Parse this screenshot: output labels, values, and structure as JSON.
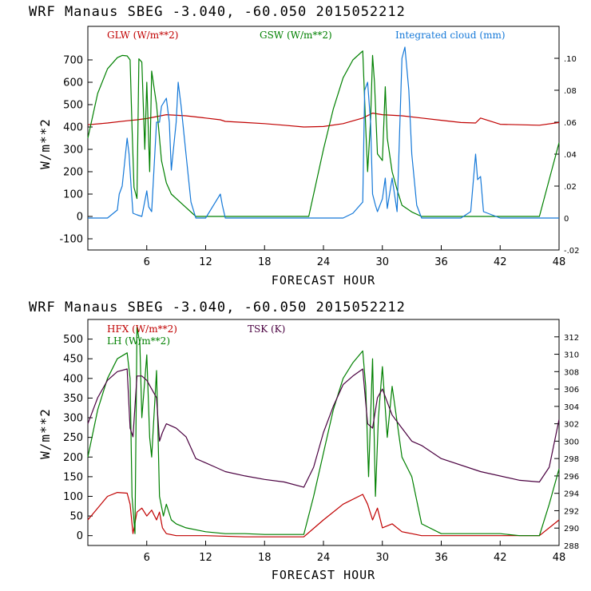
{
  "chart_data": [
    {
      "type": "line",
      "title": "WRF   Manaus SBEG   -3.040, -60.050  2015052212",
      "xlabel": "FORECAST HOUR",
      "ylabel": "W/m**2",
      "xlim": [
        0,
        48
      ],
      "ylim": [
        -150,
        850
      ],
      "y2lim": [
        -0.02,
        0.12
      ],
      "x_ticks": [
        "6",
        "12",
        "18",
        "24",
        "30",
        "36",
        "42",
        "48"
      ],
      "y_ticks": [
        "-100",
        "0",
        "100",
        "200",
        "300",
        "400",
        "500",
        "600",
        "700"
      ],
      "y2_ticks": [
        "-.02",
        "0",
        ".02",
        ".04",
        ".06",
        ".08",
        ".10"
      ],
      "series": [
        {
          "name": "GLW (W/m**2)",
          "color": "#c00000",
          "axis": "left",
          "x": [
            0,
            2,
            4,
            5,
            6,
            8,
            10,
            12,
            13.5,
            14,
            16,
            18,
            20,
            22,
            24,
            26,
            28,
            29,
            30,
            32,
            34,
            36,
            38,
            39.5,
            40,
            42,
            44,
            46,
            48
          ],
          "y": [
            410,
            418,
            428,
            432,
            438,
            455,
            450,
            440,
            432,
            425,
            420,
            415,
            408,
            400,
            402,
            415,
            440,
            462,
            455,
            450,
            440,
            430,
            420,
            418,
            440,
            412,
            410,
            408,
            420
          ]
        },
        {
          "name": "GSW (W/m**2)",
          "color": "#008000",
          "axis": "left",
          "x": [
            0,
            1,
            2,
            3,
            3.5,
            4,
            4.3,
            4.5,
            4.7,
            5,
            5.2,
            5.5,
            5.8,
            6,
            6.3,
            6.5,
            7,
            7.5,
            8,
            8.5,
            9,
            10,
            11,
            12,
            13,
            14,
            16,
            18,
            20,
            22,
            22.5,
            24,
            25,
            26,
            27,
            28,
            28.3,
            28.5,
            28.8,
            29,
            29.2,
            29.5,
            30,
            30.3,
            30.5,
            31,
            31.5,
            32,
            33,
            34,
            35,
            36,
            38,
            40,
            42,
            46,
            48
          ],
          "y": [
            350,
            550,
            660,
            710,
            720,
            718,
            700,
            400,
            130,
            80,
            705,
            690,
            300,
            600,
            200,
            650,
            500,
            250,
            150,
            100,
            80,
            40,
            0,
            0,
            0,
            0,
            0,
            0,
            0,
            0,
            0,
            300,
            480,
            620,
            700,
            740,
            400,
            200,
            430,
            720,
            600,
            280,
            250,
            580,
            350,
            200,
            120,
            50,
            20,
            0,
            0,
            0,
            0,
            0,
            0,
            0,
            330
          ]
        },
        {
          "name": "Integrated cloud (mm)",
          "color": "#1478d8",
          "axis": "right",
          "x": [
            0,
            2,
            3,
            3.2,
            3.5,
            4,
            4.2,
            4.4,
            4.6,
            5,
            5.5,
            6,
            6.2,
            6.5,
            7,
            7.3,
            7.5,
            8,
            8.3,
            8.5,
            9,
            9.2,
            9.5,
            10,
            10.5,
            11,
            12,
            13.5,
            13.7,
            14,
            16,
            18,
            20,
            22,
            26,
            27,
            28,
            28.2,
            28.5,
            28.8,
            29,
            29.3,
            29.5,
            30,
            30.3,
            30.5,
            31,
            31.5,
            32,
            32.3,
            32.7,
            33,
            33.5,
            34,
            36,
            38,
            39,
            39.5,
            39.7,
            40,
            40.3,
            42,
            44,
            46,
            48
          ],
          "y": [
            0,
            0,
            0.005,
            0.015,
            0.02,
            0.05,
            0.04,
            0.02,
            0.003,
            0.002,
            0.001,
            0.017,
            0.007,
            0.004,
            0.06,
            0.06,
            0.07,
            0.075,
            0.06,
            0.03,
            0.06,
            0.085,
            0.07,
            0.04,
            0.01,
            0,
            0,
            0.015,
            0.008,
            0,
            0,
            0,
            0,
            0,
            0,
            0.003,
            0.01,
            0.08,
            0.085,
            0.06,
            0.015,
            0.008,
            0.004,
            0.012,
            0.025,
            0.006,
            0.025,
            0.004,
            0.1,
            0.107,
            0.08,
            0.04,
            0.008,
            0,
            0,
            0,
            0.004,
            0.04,
            0.024,
            0.026,
            0.004,
            0,
            0,
            0,
            0
          ]
        }
      ]
    },
    {
      "type": "line",
      "title": "WRF   Manaus SBEG   -3.040, -60.050  2015052212",
      "xlabel": "FORECAST HOUR",
      "ylabel": "W/m**2",
      "xlim": [
        0,
        48
      ],
      "ylim": [
        -25,
        550
      ],
      "y2lim": [
        288,
        314
      ],
      "x_ticks": [
        "6",
        "12",
        "18",
        "24",
        "30",
        "36",
        "42",
        "48"
      ],
      "y_ticks": [
        "0",
        "50",
        "100",
        "150",
        "200",
        "250",
        "300",
        "350",
        "400",
        "450",
        "500"
      ],
      "y2_ticks": [
        "288",
        "290",
        "292",
        "294",
        "296",
        "298",
        "300",
        "302",
        "304",
        "306",
        "308",
        "310",
        "312"
      ],
      "series": [
        {
          "name": "HFX (W/m**2)",
          "color": "#c00000",
          "axis": "left",
          "x": [
            0,
            1,
            2,
            3,
            4,
            4.3,
            4.6,
            5,
            5.5,
            6,
            6.5,
            7,
            7.3,
            7.6,
            8,
            9,
            10,
            12,
            16,
            20,
            22,
            24,
            26,
            28,
            28.5,
            29,
            29.5,
            30,
            31,
            32,
            33,
            34,
            36,
            40,
            44,
            46,
            48
          ],
          "y": [
            40,
            70,
            100,
            110,
            108,
            80,
            5,
            60,
            70,
            50,
            65,
            40,
            60,
            20,
            5,
            0,
            0,
            0,
            -3,
            -3,
            -3,
            40,
            80,
            105,
            80,
            40,
            70,
            20,
            30,
            10,
            5,
            0,
            0,
            0,
            0,
            0,
            40
          ]
        },
        {
          "name": "LH  (W/m**2)",
          "color": "#008000",
          "axis": "left",
          "x": [
            0,
            1,
            2,
            3,
            4,
            4.3,
            4.5,
            4.8,
            5,
            5.3,
            5.5,
            6,
            6.3,
            6.5,
            7,
            7.3,
            7.7,
            8,
            8.5,
            9,
            10,
            12,
            14,
            16,
            18,
            20,
            22,
            23,
            24,
            25,
            26,
            27,
            28,
            28.3,
            28.6,
            29,
            29.3,
            29.6,
            30,
            30.5,
            31,
            32,
            33,
            34,
            36,
            38,
            40,
            42,
            44,
            46,
            47,
            48
          ],
          "y": [
            200,
            320,
            400,
            450,
            465,
            400,
            100,
            5,
            530,
            490,
            300,
            460,
            250,
            200,
            420,
            100,
            50,
            80,
            40,
            30,
            20,
            10,
            5,
            5,
            3,
            3,
            3,
            100,
            210,
            320,
            400,
            440,
            470,
            380,
            150,
            450,
            100,
            300,
            430,
            250,
            380,
            200,
            150,
            30,
            5,
            5,
            5,
            5,
            0,
            0,
            80,
            170
          ]
        },
        {
          "name": "TSK (K)",
          "color": "#4a0040",
          "axis": "right",
          "x": [
            0,
            1,
            2,
            3,
            4,
            4.3,
            4.6,
            5,
            5.5,
            6,
            6.5,
            7,
            7.3,
            7.6,
            8,
            9,
            10,
            11,
            12,
            13,
            14,
            16,
            18,
            20,
            22,
            23,
            24,
            25,
            26,
            27,
            28,
            28.5,
            29,
            29.5,
            30,
            31,
            32,
            33,
            34,
            36,
            40,
            44,
            46,
            47,
            48
          ],
          "y": [
            302,
            305,
            307,
            308,
            308.3,
            301.5,
            300.5,
            307.5,
            307.5,
            307,
            306,
            305,
            300,
            301,
            302,
            301.5,
            300.5,
            298,
            297.5,
            297,
            296.5,
            296,
            295.6,
            295.3,
            294.7,
            297,
            301,
            304,
            306.5,
            307.5,
            308.3,
            302,
            301.5,
            305,
            306,
            303,
            301.5,
            300,
            299.5,
            298,
            296.5,
            295.5,
            295.3,
            297,
            302.5
          ]
        }
      ]
    }
  ]
}
